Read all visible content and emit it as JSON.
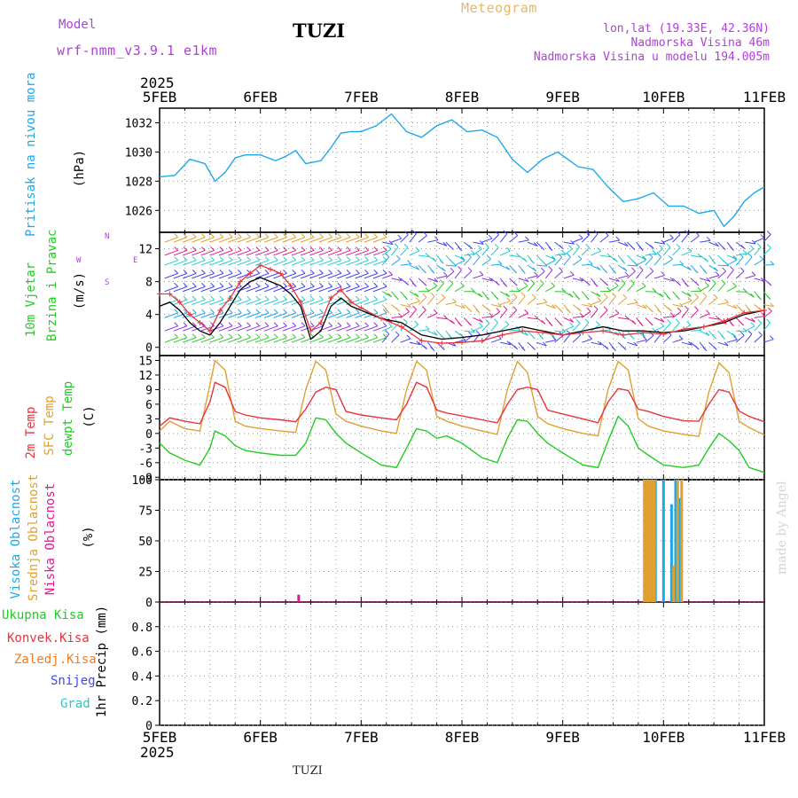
{
  "header": {
    "model_label": "Model",
    "model_name": "wrf-nmm_v3.9.1 e1km",
    "station_title": "TUZI",
    "meteogram_title": "Meteogram",
    "lonlat": "lon,lat (19.33E, 42.36N)",
    "elevation": "Nadmorska Visina 46m",
    "model_elevation": "Nadmorska Visina u modelu 194.005m"
  },
  "footer": {
    "station": "TUZI",
    "credit": "made by Angel"
  },
  "time_axis": {
    "year": "2025",
    "ticks": [
      "5FEB",
      "6FEB",
      "7FEB",
      "8FEB",
      "9FEB",
      "10FEB",
      "11FEB"
    ]
  },
  "panels": {
    "pressure": {
      "label": "Pritisak na nivou mora",
      "unit": "(hPa)"
    },
    "wind": {
      "label1": "10m Vjetar",
      "label2": "Brzina i Pravac",
      "unit": "(m/s)",
      "compass": {
        "n": "N",
        "s": "S",
        "e": "E",
        "w": "W"
      }
    },
    "temp": {
      "label1": "2m Temp",
      "label2": "SFC Temp",
      "label3": "dewpt Temp",
      "unit": "(C)"
    },
    "cloud": {
      "label1": "Visoka Oblacnost",
      "label2": "Srednja Oblacnost",
      "label3": "Niska Oblacnost",
      "unit": "(%)"
    },
    "precip": {
      "legend": [
        "Ukupna Kisa",
        "Konvek.Kisa",
        "Zaledj.Kisa",
        "Snijeg",
        "Grad"
      ],
      "unit": "1hr Precip (mm)"
    }
  },
  "colors": {
    "pressure": "#1fa8e8",
    "wind_black": "#000000",
    "wind_red": "#e8343c",
    "temp2m": "#e8343c",
    "sfc": "#e0a030",
    "dew": "#22cc22",
    "high_cloud": "#1fa8e8",
    "mid_cloud": "#e0a030",
    "low_cloud": "#e0198c",
    "total_rain": "#22cc22",
    "conv_rain": "#e8343c",
    "frz_rain": "#f07a20",
    "snow": "#4444ee",
    "hail": "#22c8c8",
    "model": "#b040d8",
    "meteogram": "#e8b860"
  },
  "chart_data": [
    {
      "type": "line",
      "title": "",
      "ylabel": "Pritisak na nivou mora (hPa)",
      "ylim": [
        1024.5,
        1033
      ],
      "yticks": [
        1026,
        1028,
        1030,
        1032
      ],
      "x_range_days": [
        "5FEB",
        "11FEB"
      ],
      "series": [
        {
          "name": "Pritisak na nivou mora",
          "x": [
            0,
            0.15,
            0.3,
            0.45,
            0.55,
            0.65,
            0.75,
            0.85,
            1.0,
            1.15,
            1.25,
            1.35,
            1.45,
            1.6,
            1.7,
            1.8,
            1.9,
            2.0,
            2.15,
            2.3,
            2.45,
            2.6,
            2.75,
            2.9,
            3.05,
            3.2,
            3.35,
            3.5,
            3.65,
            3.8,
            3.95,
            4.05,
            4.15,
            4.3,
            4.45,
            4.6,
            4.75,
            4.9,
            5.05,
            5.2,
            5.35,
            5.5,
            5.6,
            5.7,
            5.8,
            5.9,
            6.0
          ],
          "values": [
            1028.3,
            1028.4,
            1029.5,
            1029.2,
            1028.0,
            1028.6,
            1029.6,
            1029.8,
            1029.8,
            1029.4,
            1029.7,
            1030.1,
            1029.2,
            1029.4,
            1030.3,
            1031.3,
            1031.4,
            1031.4,
            1031.8,
            1032.6,
            1031.4,
            1031.0,
            1031.8,
            1032.2,
            1031.4,
            1031.5,
            1031.0,
            1029.5,
            1028.6,
            1029.5,
            1030.0,
            1029.5,
            1029.0,
            1028.8,
            1027.6,
            1026.6,
            1026.8,
            1027.2,
            1026.3,
            1026.3,
            1025.8,
            1026.0,
            1024.9,
            1025.6,
            1026.6,
            1027.2,
            1027.6
          ]
        }
      ]
    },
    {
      "type": "line",
      "title": "",
      "ylabel": "10m Vjetar Brzina i Pravac (m/s)",
      "ylim": [
        -1,
        14
      ],
      "yticks": [
        0,
        4,
        8,
        12
      ],
      "series": [
        {
          "name": "10m Vjetar",
          "x": [
            0,
            0.1,
            0.2,
            0.3,
            0.4,
            0.5,
            0.6,
            0.7,
            0.8,
            0.9,
            1.0,
            1.1,
            1.2,
            1.3,
            1.4,
            1.5,
            1.6,
            1.7,
            1.8,
            1.9,
            2.0,
            2.2,
            2.4,
            2.6,
            2.8,
            3.0,
            3.2,
            3.4,
            3.6,
            3.8,
            4.0,
            4.2,
            4.4,
            4.6,
            4.8,
            5.0,
            5.2,
            5.4,
            5.6,
            5.8,
            6.0
          ],
          "values": [
            5,
            5.5,
            4.5,
            3,
            2,
            1.5,
            3,
            5,
            7,
            8,
            8.5,
            8,
            7.5,
            6.5,
            5,
            1,
            2,
            5,
            6,
            5,
            4.5,
            3.5,
            3,
            1.5,
            1,
            1.2,
            1.5,
            2,
            2.5,
            2,
            1.5,
            2,
            2.5,
            2,
            2,
            1.8,
            2,
            2.5,
            3,
            4,
            4.5
          ]
        },
        {
          "name": "Brzina i Pravac",
          "x": [
            0,
            0.1,
            0.2,
            0.3,
            0.4,
            0.5,
            0.6,
            0.7,
            0.8,
            0.9,
            1.0,
            1.1,
            1.2,
            1.3,
            1.4,
            1.5,
            1.6,
            1.7,
            1.8,
            1.9,
            2.0,
            2.2,
            2.4,
            2.6,
            2.8,
            3.0,
            3.2,
            3.4,
            3.6,
            3.8,
            4.0,
            4.2,
            4.4,
            4.6,
            4.8,
            5.0,
            5.2,
            5.4,
            5.6,
            5.8,
            6.0
          ],
          "values": [
            6.5,
            6.5,
            5.5,
            4,
            3,
            2,
            4.5,
            6,
            8,
            9,
            10,
            9.5,
            9,
            7.5,
            5.5,
            2,
            3,
            6,
            7,
            5.5,
            4.8,
            3.5,
            2.5,
            0.8,
            0.5,
            0.6,
            0.8,
            1.5,
            2,
            1.8,
            1.5,
            1.8,
            2,
            1.5,
            1.8,
            1.6,
            2.2,
            2.5,
            3.2,
            4.2,
            4.5
          ]
        }
      ]
    },
    {
      "type": "line",
      "title": "",
      "ylabel": "(C)",
      "ylim": [
        -9.5,
        16
      ],
      "yticks": [
        -9,
        -6,
        -3,
        0,
        3,
        6,
        9,
        12,
        15
      ],
      "series": [
        {
          "name": "2m Temp",
          "x": [
            0,
            0.1,
            0.25,
            0.4,
            0.5,
            0.55,
            0.65,
            0.75,
            0.85,
            1.0,
            1.2,
            1.35,
            1.45,
            1.55,
            1.65,
            1.75,
            1.85,
            2.0,
            2.2,
            2.35,
            2.45,
            2.55,
            2.65,
            2.75,
            2.85,
            3.0,
            3.2,
            3.35,
            3.45,
            3.55,
            3.65,
            3.75,
            3.85,
            4.0,
            4.2,
            4.35,
            4.45,
            4.55,
            4.65,
            4.75,
            4.85,
            5.0,
            5.2,
            5.35,
            5.45,
            5.55,
            5.65,
            5.75,
            5.85,
            6.0
          ],
          "values": [
            1.5,
            3.2,
            2.5,
            2,
            6.5,
            10.5,
            9.5,
            4.5,
            3.8,
            3.2,
            2.8,
            2.4,
            5,
            8.5,
            9.5,
            9,
            4.5,
            3.8,
            3.2,
            2.8,
            6,
            10.5,
            9.5,
            4.8,
            4.2,
            3.6,
            2.8,
            2.2,
            6,
            9,
            9.5,
            9,
            4.8,
            4,
            3,
            2.2,
            6.5,
            9.2,
            8.8,
            5,
            4.5,
            3.5,
            2.6,
            2.5,
            6,
            9,
            8.5,
            4.6,
            3.5,
            2.4
          ]
        },
        {
          "name": "SFC Temp",
          "x": [
            0,
            0.1,
            0.25,
            0.4,
            0.5,
            0.55,
            0.65,
            0.75,
            0.85,
            1.0,
            1.2,
            1.35,
            1.45,
            1.55,
            1.65,
            1.75,
            1.85,
            2.0,
            2.2,
            2.35,
            2.45,
            2.55,
            2.65,
            2.75,
            2.85,
            3.0,
            3.2,
            3.35,
            3.45,
            3.55,
            3.65,
            3.75,
            3.85,
            4.0,
            4.2,
            4.35,
            4.45,
            4.55,
            4.65,
            4.75,
            4.85,
            5.0,
            5.2,
            5.35,
            5.45,
            5.55,
            5.65,
            5.75,
            5.85,
            6.0
          ],
          "values": [
            0.5,
            2.5,
            1,
            0.5,
            10,
            15,
            13,
            2.5,
            1.5,
            1,
            0.5,
            0.2,
            9,
            14.8,
            13,
            4,
            2.5,
            1.5,
            0.5,
            0,
            9,
            14.8,
            13,
            3.5,
            2.5,
            1.5,
            0.5,
            -0.2,
            9,
            14.8,
            12.5,
            3.5,
            2,
            1,
            0,
            -0.5,
            9,
            14.8,
            13,
            3,
            1.5,
            0.5,
            -0.2,
            -0.6,
            8.5,
            14.5,
            12.5,
            2.5,
            1.2,
            -0.3
          ]
        },
        {
          "name": "dewpt Temp",
          "x": [
            0,
            0.1,
            0.25,
            0.4,
            0.5,
            0.55,
            0.65,
            0.75,
            0.85,
            1.0,
            1.2,
            1.35,
            1.45,
            1.55,
            1.65,
            1.75,
            1.85,
            2.0,
            2.2,
            2.35,
            2.45,
            2.55,
            2.65,
            2.75,
            2.85,
            3.0,
            3.2,
            3.35,
            3.45,
            3.55,
            3.65,
            3.75,
            3.85,
            4.0,
            4.2,
            4.35,
            4.45,
            4.55,
            4.65,
            4.75,
            4.85,
            5.0,
            5.2,
            5.35,
            5.45,
            5.55,
            5.65,
            5.75,
            5.85,
            6.0
          ],
          "values": [
            -2,
            -4,
            -5.5,
            -6.5,
            -3,
            0.5,
            -0.5,
            -2.5,
            -3.5,
            -4,
            -4.5,
            -4.5,
            -2,
            3.2,
            2.8,
            0,
            -2,
            -4,
            -6.5,
            -7,
            -3,
            1,
            0.5,
            -1,
            -0.5,
            -2,
            -5,
            -6,
            -1,
            2.8,
            2.5,
            0,
            -2,
            -4,
            -6.5,
            -7,
            -1.5,
            3.5,
            1.5,
            -3,
            -4.5,
            -6.5,
            -7,
            -6.5,
            -3,
            0,
            -1.5,
            -3.5,
            -7,
            -8
          ]
        }
      ]
    },
    {
      "type": "bar",
      "title": "",
      "ylabel": "(%)",
      "ylim": [
        0,
        100
      ],
      "yticks": [
        0,
        25,
        50,
        75,
        100
      ],
      "series": [
        {
          "name": "Visoka Oblacnost",
          "x": [
            4.82,
            4.84,
            4.86,
            4.88,
            4.9,
            4.92,
            5.0,
            5.08,
            5.12,
            5.16
          ],
          "values": [
            85,
            100,
            65,
            100,
            100,
            100,
            100,
            80,
            100,
            85
          ]
        },
        {
          "name": "Srednja Oblacnost",
          "x": [
            4.81,
            4.83,
            4.85,
            4.87,
            4.89,
            4.91,
            5.1,
            5.14,
            5.18
          ],
          "values": [
            100,
            100,
            100,
            100,
            100,
            100,
            30,
            100,
            100
          ]
        },
        {
          "name": "Niska Oblacnost",
          "x": [
            1.38
          ],
          "values": [
            6
          ]
        }
      ]
    },
    {
      "type": "bar",
      "title": "",
      "ylabel": "1hr Precip (mm)",
      "ylim": [
        0,
        1
      ],
      "yticks": [
        0,
        0.2,
        0.4,
        0.6,
        0.8
      ],
      "series": [
        {
          "name": "Ukupna Kisa",
          "x": [],
          "values": []
        },
        {
          "name": "Konvek.Kisa",
          "x": [],
          "values": []
        },
        {
          "name": "Zaledj.Kisa",
          "x": [],
          "values": []
        },
        {
          "name": "Snijeg",
          "x": [],
          "values": []
        },
        {
          "name": "Grad",
          "x": [],
          "values": []
        }
      ]
    }
  ]
}
